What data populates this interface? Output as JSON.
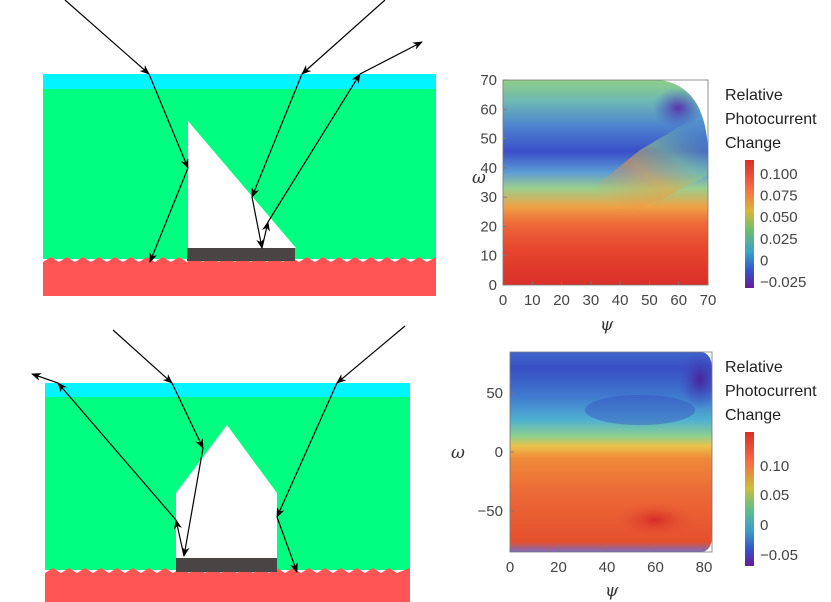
{
  "colors": {
    "glass": "#00F5FF",
    "medium": "#00FF80",
    "substrate": "#FF5555",
    "prism": "#FFFFFF",
    "base": "#4A4444",
    "ray": "#000000"
  },
  "plots": [
    {
      "legend_title": [
        "Relative",
        "Photocurrent",
        "Change"
      ],
      "colorbar_ticks": [
        "0.100",
        "0.075",
        "0.050",
        "0.025",
        "0",
        "−0.025"
      ],
      "x_label": "ψ",
      "y_label": "ω",
      "x_ticks": [
        "0",
        "10",
        "20",
        "30",
        "40",
        "50",
        "60",
        "70"
      ],
      "y_ticks": [
        "0",
        "10",
        "20",
        "30",
        "40",
        "50",
        "60",
        "70"
      ]
    },
    {
      "legend_title": [
        "Relative",
        "Photocurrent",
        "Change"
      ],
      "colorbar_ticks": [
        "0.10",
        "0.05",
        "0",
        "−0.05"
      ],
      "x_label": "ψ",
      "y_label": "ω",
      "x_ticks": [
        "0",
        "20",
        "40",
        "60",
        "80"
      ],
      "y_ticks": [
        "50",
        "0",
        "−50"
      ]
    }
  ],
  "chart_data": [
    {
      "type": "heatmap",
      "x_label": "ψ",
      "y_label": "ω",
      "x_range": [
        0,
        70
      ],
      "y_range": [
        0,
        70
      ],
      "colorbar_range": [
        -0.025,
        0.11
      ],
      "colorbar_title": "Relative Photocurrent Change",
      "colorbar_ticks": [
        0.1,
        0.075,
        0.05,
        0.025,
        0,
        -0.025
      ],
      "description_values": {
        "low_omega_region": 0.1,
        "mid_omega_band": 0.0,
        "high_omega_region": 0.04
      }
    },
    {
      "type": "heatmap",
      "x_label": "ψ",
      "y_label": "ω",
      "x_range": [
        0,
        80
      ],
      "y_range": [
        -85,
        85
      ],
      "colorbar_range": [
        -0.07,
        0.14
      ],
      "colorbar_title": "Relative Photocurrent Change",
      "colorbar_ticks": [
        0.1,
        0.05,
        0,
        -0.05
      ],
      "description_values": {
        "negative_omega_region": 0.11,
        "positive_omega_region": 0.0,
        "corner_high_psi_high_omega": -0.05
      }
    }
  ]
}
